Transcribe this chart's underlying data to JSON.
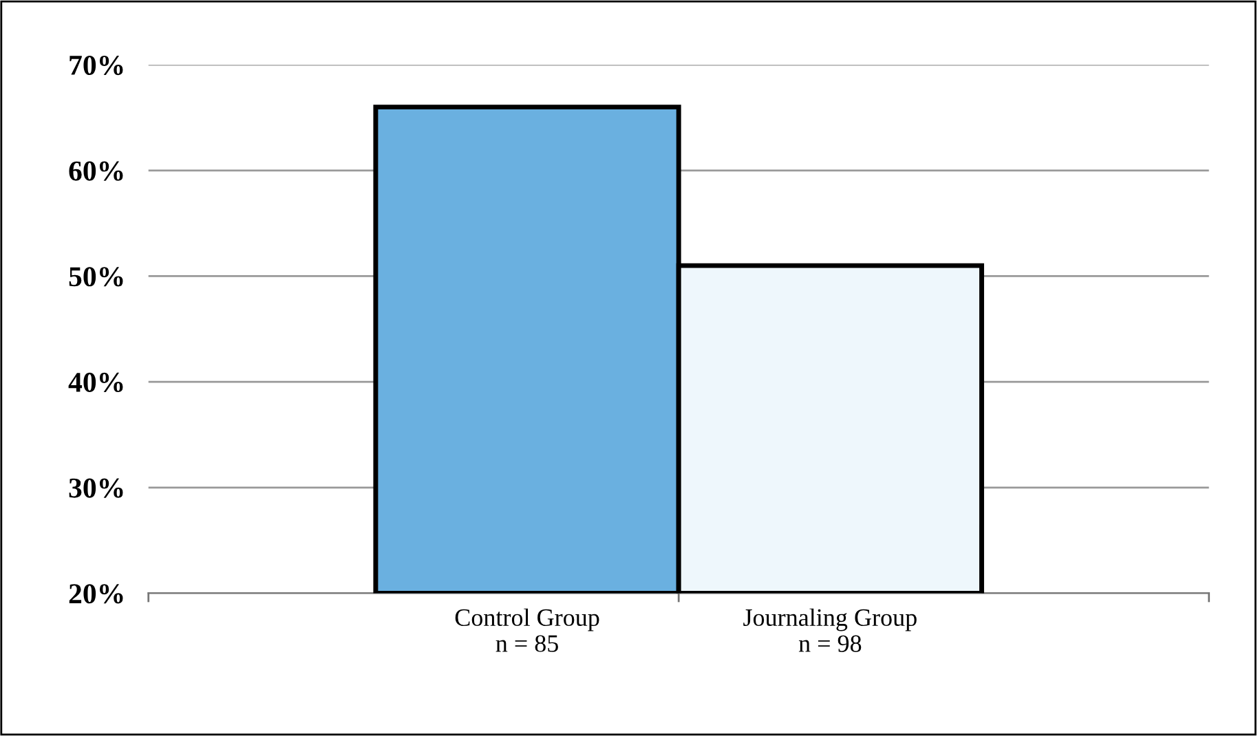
{
  "chart_data": {
    "type": "bar",
    "categories": [
      "Control Group\nn = 85",
      "Journaling Group\nn = 98"
    ],
    "values": [
      66,
      51
    ],
    "colors": [
      "#6ab0e0",
      "#eef7fc"
    ],
    "ylim": [
      20,
      70
    ],
    "yticks": [
      {
        "value": 20,
        "label": "20%"
      },
      {
        "value": 30,
        "label": "30%"
      },
      {
        "value": 40,
        "label": "40%"
      },
      {
        "value": 50,
        "label": "50%"
      },
      {
        "value": 60,
        "label": "60%"
      },
      {
        "value": 70,
        "label": "70%"
      }
    ],
    "grid": "y"
  }
}
